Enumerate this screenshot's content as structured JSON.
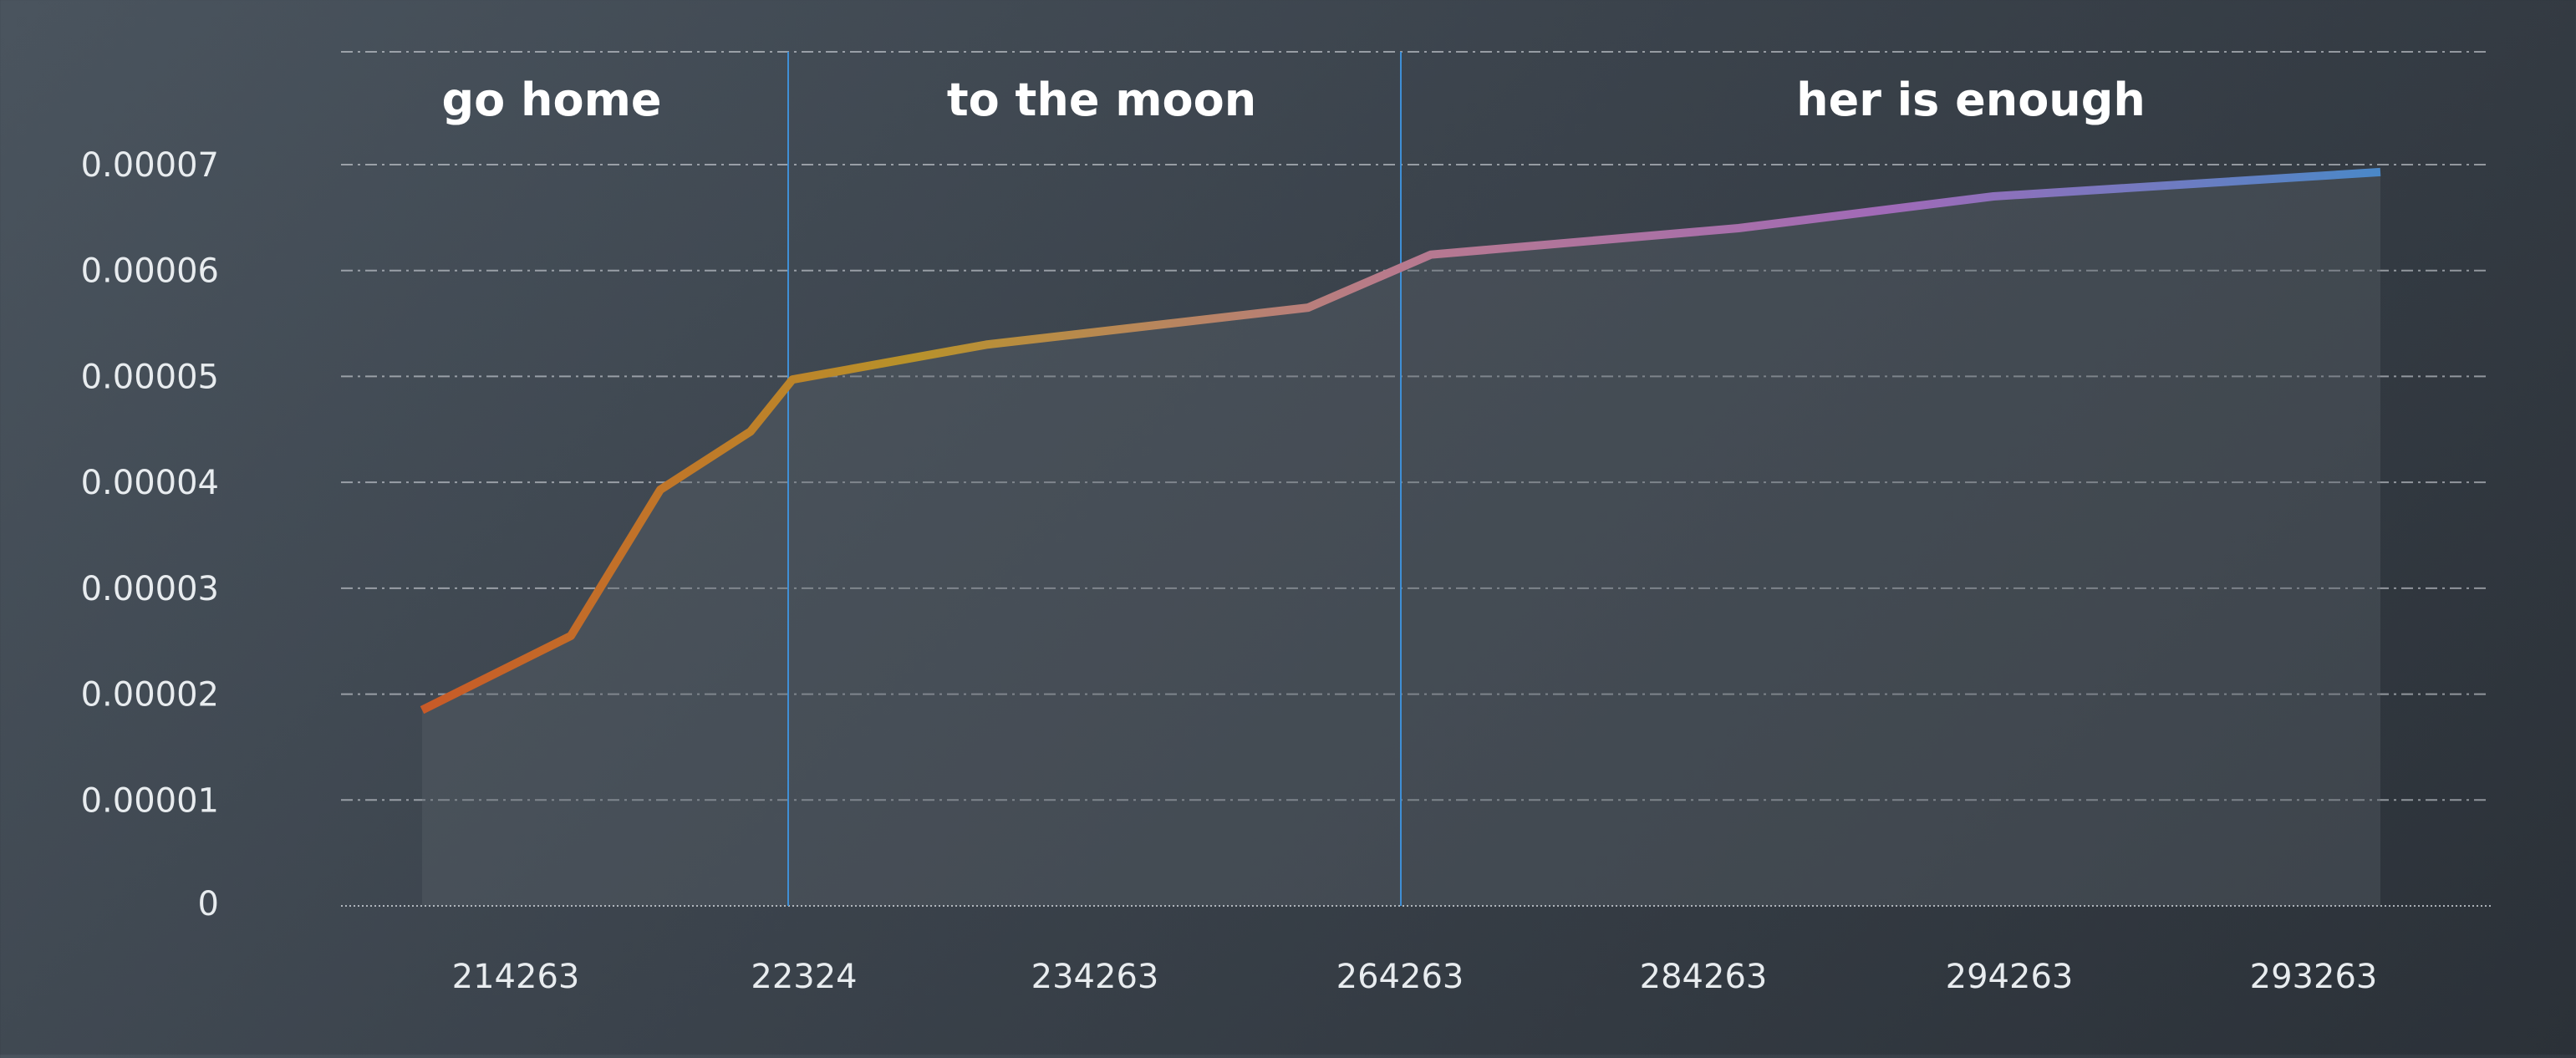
{
  "chart_data": {
    "type": "area",
    "title": "",
    "xlabel": "",
    "ylabel": "",
    "ylim": [
      0,
      8.2e-05
    ],
    "y_ticks": [
      "0",
      "0.00001",
      "0.00002",
      "0.00003",
      "0.00004",
      "0.00005",
      "0.00006",
      "0.00007"
    ],
    "y_tick_values": [
      0,
      1e-05,
      2e-05,
      3e-05,
      4e-05,
      5e-05,
      6e-05,
      7e-05
    ],
    "x_tick_labels": [
      "214263",
      "22324",
      "234263",
      "264263",
      "284263",
      "294263",
      "293263"
    ],
    "grid": true,
    "grid_style": "dash-dot",
    "line_gradient": [
      "#c85a28",
      "#b8922a",
      "#b87a8e",
      "#a06ab8",
      "#4a88c8"
    ],
    "series": [
      {
        "values": [
          1.85e-05,
          2.55e-05,
          3.93e-05,
          4.48e-05,
          4.97e-05,
          5.3e-05,
          5.65e-05,
          6.15e-05,
          6.4e-05,
          6.7e-05,
          6.93e-05
        ]
      }
    ],
    "regions": [
      {
        "label": "go home"
      },
      {
        "label": "to the moon"
      },
      {
        "label": "her is enough"
      }
    ],
    "region_divider_color": "#3f8fd6"
  }
}
